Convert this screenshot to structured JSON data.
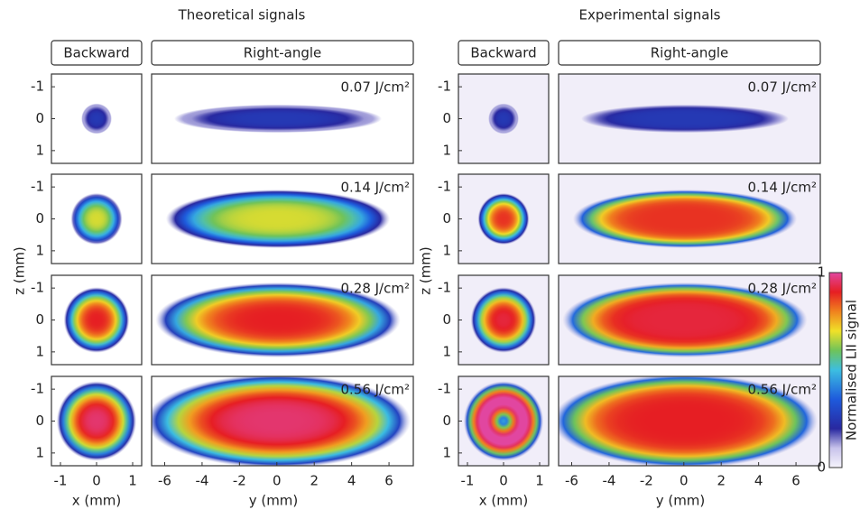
{
  "titles": [
    "Theoretical signals",
    "Experimental signals"
  ],
  "headers": [
    "Backward",
    "Right-angle"
  ],
  "fluences": [
    "0.07 J/cm²",
    "0.14 J/cm²",
    "0.28 J/cm²",
    "0.56 J/cm²"
  ],
  "z_axis": {
    "label": "z (mm)",
    "lim": [
      -1.4,
      1.4
    ],
    "ticks": [
      -1,
      0,
      1
    ]
  },
  "x_axis": {
    "label": "x (mm)",
    "lim": [
      -1.25,
      1.25
    ],
    "ticks": [
      -1,
      0,
      1
    ]
  },
  "y_axis": {
    "label": "y (mm)",
    "lim": [
      -6.7,
      7.3
    ],
    "ticks": [
      -6,
      -4,
      -2,
      0,
      2,
      4,
      6
    ]
  },
  "colorbar": {
    "label": "Normalised LII signal",
    "lim": [
      0,
      1
    ],
    "ticks": [
      0,
      1
    ]
  }
}
